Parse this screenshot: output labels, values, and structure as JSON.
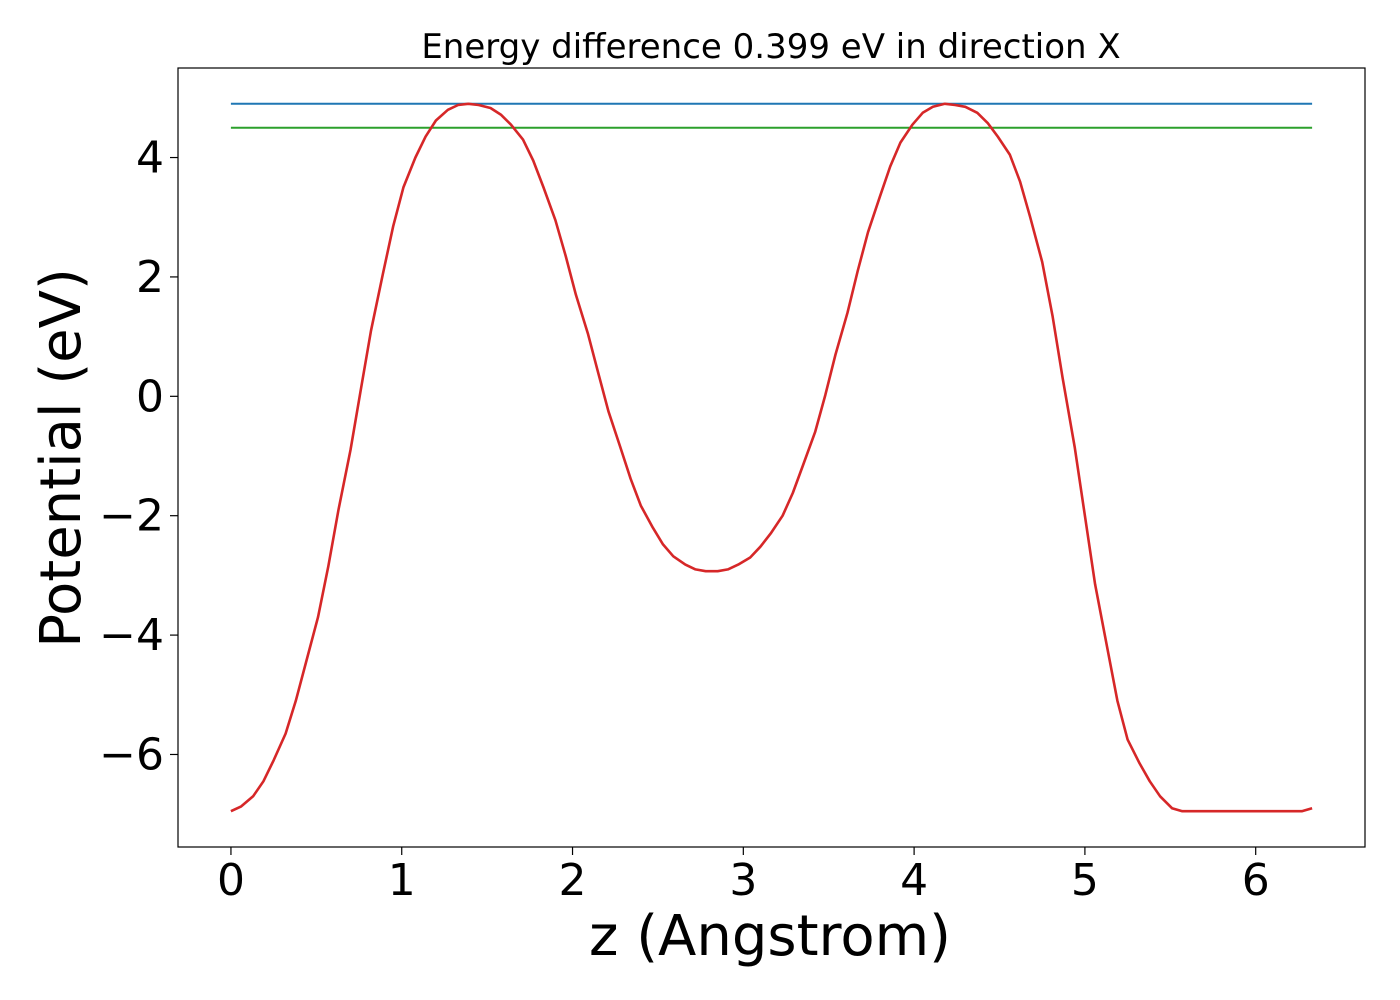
{
  "chart_data": {
    "type": "line",
    "title": "Energy difference 0.399 eV in direction X",
    "xlabel": "z (Angstrom)",
    "ylabel": "Potential (eV)",
    "xlim": [
      -0.31,
      6.64
    ],
    "ylim": [
      -7.55,
      5.5
    ],
    "x_ticks": [
      0,
      1,
      2,
      3,
      4,
      5,
      6
    ],
    "x_tick_labels": [
      "0",
      "1",
      "2",
      "3",
      "4",
      "5",
      "6"
    ],
    "y_ticks": [
      -6,
      -4,
      -2,
      0,
      2,
      4
    ],
    "y_tick_labels": [
      "−6",
      "−4",
      "−2",
      "0",
      "2",
      "4"
    ],
    "grid": false,
    "colors": {
      "potential": "#d62728",
      "max_line": "#1f77b4",
      "avg_line": "#2ca02c"
    },
    "series": [
      {
        "key": "potential",
        "x": [
          0.0,
          0.06,
          0.13,
          0.19,
          0.25,
          0.32,
          0.38,
          0.44,
          0.51,
          0.57,
          0.63,
          0.7,
          0.76,
          0.82,
          0.89,
          0.95,
          1.01,
          1.08,
          1.14,
          1.2,
          1.27,
          1.33,
          1.39,
          1.45,
          1.52,
          1.58,
          1.64,
          1.71,
          1.77,
          1.83,
          1.9,
          1.96,
          2.02,
          2.09,
          2.15,
          2.21,
          2.28,
          2.34,
          2.4,
          2.47,
          2.53,
          2.59,
          2.66,
          2.72,
          2.78,
          2.85,
          2.91,
          2.97,
          3.04,
          3.1,
          3.16,
          3.23,
          3.29,
          3.35,
          3.42,
          3.48,
          3.54,
          3.61,
          3.67,
          3.73,
          3.8,
          3.86,
          3.92,
          3.99,
          4.05,
          4.11,
          4.18,
          4.24,
          4.3,
          4.37,
          4.43,
          4.49,
          4.56,
          4.62,
          4.68,
          4.75,
          4.81,
          4.87,
          4.94,
          5.0,
          5.06,
          5.13,
          5.19,
          5.25,
          5.32,
          5.38,
          5.44,
          5.51,
          5.57,
          5.63,
          5.7,
          5.76,
          5.82,
          5.89,
          5.95,
          6.01,
          6.08,
          6.14,
          6.2,
          6.27,
          6.33
        ],
        "y": [
          -6.95,
          -6.87,
          -6.7,
          -6.45,
          -6.1,
          -5.65,
          -5.1,
          -4.45,
          -3.7,
          -2.85,
          -1.9,
          -0.9,
          0.1,
          1.1,
          2.05,
          2.85,
          3.5,
          4.0,
          4.35,
          4.62,
          4.8,
          4.88,
          4.9,
          4.88,
          4.83,
          4.72,
          4.55,
          4.3,
          3.95,
          3.5,
          2.95,
          2.35,
          1.7,
          1.05,
          0.4,
          -0.25,
          -0.85,
          -1.38,
          -1.83,
          -2.2,
          -2.48,
          -2.68,
          -2.82,
          -2.9,
          -2.93,
          -2.93,
          -2.9,
          -2.82,
          -2.7,
          -2.52,
          -2.3,
          -2.0,
          -1.62,
          -1.15,
          -0.6,
          0.02,
          0.7,
          1.4,
          2.1,
          2.75,
          3.35,
          3.85,
          4.25,
          4.55,
          4.75,
          4.85,
          4.9,
          4.88,
          4.85,
          4.75,
          4.58,
          4.35,
          4.05,
          3.6,
          3.0,
          2.25,
          1.35,
          0.3,
          -0.85,
          -2.0,
          -3.15,
          -4.2,
          -5.1,
          -5.75,
          -6.15,
          -6.45,
          -6.7,
          -6.9,
          -6.95,
          -6.95,
          -6.95,
          -6.95,
          -6.95,
          -6.95,
          -6.95,
          -6.95,
          -6.95,
          -6.95,
          -6.95,
          -6.95,
          -6.9
        ]
      },
      {
        "key": "max_line",
        "x": [
          0.0,
          6.33
        ],
        "y": [
          4.9,
          4.9
        ]
      },
      {
        "key": "avg_line",
        "x": [
          0.0,
          6.33
        ],
        "y": [
          4.5,
          4.5
        ]
      }
    ]
  }
}
